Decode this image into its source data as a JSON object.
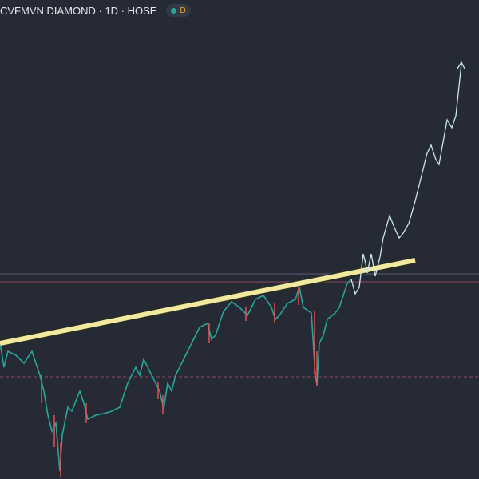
{
  "header": {
    "symbol": "CVFMVN DIAMOND · 1D · HOSE",
    "badge": "D"
  }
}
